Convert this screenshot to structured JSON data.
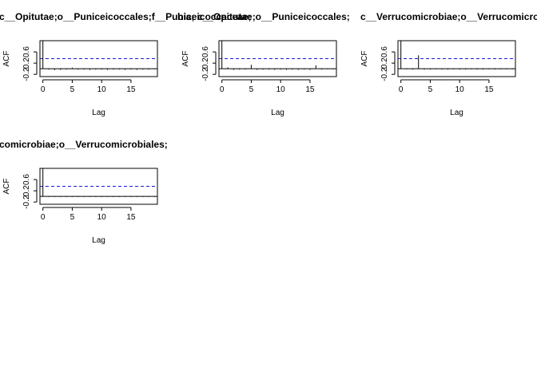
{
  "chart_data": [
    {
      "type": "bar",
      "title": "c__Opitutae;o__Puniceicoccales;f__Puniceicoccaceae;",
      "xlabel": "Lag",
      "ylabel": "ACF",
      "xlim": [
        -0.5,
        19.5
      ],
      "ylim": [
        -0.28,
        1.0
      ],
      "xticks": [
        0,
        5,
        10,
        15
      ],
      "yticks": [
        -0.2,
        0.2,
        0.6
      ],
      "ci": 0.36,
      "lags": [
        0,
        1,
        2,
        3,
        4,
        5,
        6,
        7,
        8,
        9,
        10,
        11,
        12,
        13,
        14,
        15,
        16,
        17,
        18,
        19
      ],
      "acf": [
        1.0,
        -0.03,
        -0.05,
        -0.04,
        -0.03,
        0.04,
        -0.03,
        -0.03,
        -0.04,
        -0.03,
        -0.03,
        -0.04,
        -0.03,
        -0.03,
        -0.04,
        -0.03,
        -0.04,
        -0.03,
        -0.03,
        -0.02
      ]
    },
    {
      "type": "bar",
      "title": "c__Opitutae;o__Puniceicoccales;",
      "title_prefix": "bia;",
      "xlabel": "Lag",
      "ylabel": "ACF",
      "xlim": [
        -0.5,
        19.5
      ],
      "ylim": [
        -0.28,
        1.0
      ],
      "xticks": [
        0,
        5,
        10,
        15
      ],
      "yticks": [
        -0.2,
        0.2,
        0.6
      ],
      "ci": 0.36,
      "lags": [
        0,
        1,
        2,
        3,
        4,
        5,
        6,
        7,
        8,
        9,
        10,
        11,
        12,
        13,
        14,
        15,
        16,
        17,
        18,
        19
      ],
      "acf": [
        1.0,
        0.05,
        -0.04,
        -0.03,
        -0.03,
        0.14,
        -0.04,
        -0.03,
        -0.03,
        -0.04,
        -0.03,
        -0.04,
        -0.03,
        -0.04,
        -0.03,
        -0.04,
        0.12,
        -0.03,
        -0.02,
        -0.02
      ]
    },
    {
      "type": "bar",
      "title": "c__Verrucomicrobiae;o__Verrucomicrobiales;",
      "xlabel": "Lag",
      "ylabel": "ACF",
      "xlim": [
        -0.5,
        19.5
      ],
      "ylim": [
        -0.28,
        1.0
      ],
      "xticks": [
        0,
        5,
        10,
        15
      ],
      "yticks": [
        -0.2,
        0.2,
        0.6
      ],
      "ci": 0.36,
      "lags": [
        0,
        1,
        2,
        3,
        4,
        5,
        6,
        7,
        8,
        9,
        10,
        11,
        12,
        13,
        14,
        15,
        16,
        17,
        18,
        19
      ],
      "acf": [
        1.0,
        -0.02,
        -0.03,
        0.48,
        -0.03,
        -0.03,
        -0.02,
        -0.03,
        -0.03,
        -0.02,
        -0.03,
        -0.03,
        -0.02,
        -0.03,
        -0.03,
        -0.02,
        -0.03,
        -0.02,
        -0.02,
        -0.02
      ]
    },
    {
      "type": "bar",
      "title": "c__Verrucomicrobiae;o__Verrucomicrobiales;",
      "visible_title": "comicrobiae;o__Verrucomicrobiales;",
      "xlabel": "Lag",
      "ylabel": "ACF",
      "xlim": [
        -0.5,
        19.5
      ],
      "ylim": [
        -0.28,
        1.0
      ],
      "xticks": [
        0,
        5,
        10,
        15
      ],
      "yticks": [
        -0.2,
        0.2,
        0.6
      ],
      "ci": 0.36,
      "lags": [
        0,
        1,
        2,
        3,
        4,
        5,
        6,
        7,
        8,
        9,
        10,
        11,
        12,
        13,
        14,
        15,
        16,
        17,
        18,
        19
      ],
      "acf": [
        1.0,
        -0.02,
        -0.02,
        -0.02,
        -0.02,
        -0.02,
        -0.02,
        -0.02,
        -0.02,
        -0.02,
        -0.02,
        -0.02,
        -0.02,
        -0.02,
        -0.02,
        -0.02,
        -0.02,
        -0.02,
        -0.02,
        -0.02
      ]
    }
  ]
}
